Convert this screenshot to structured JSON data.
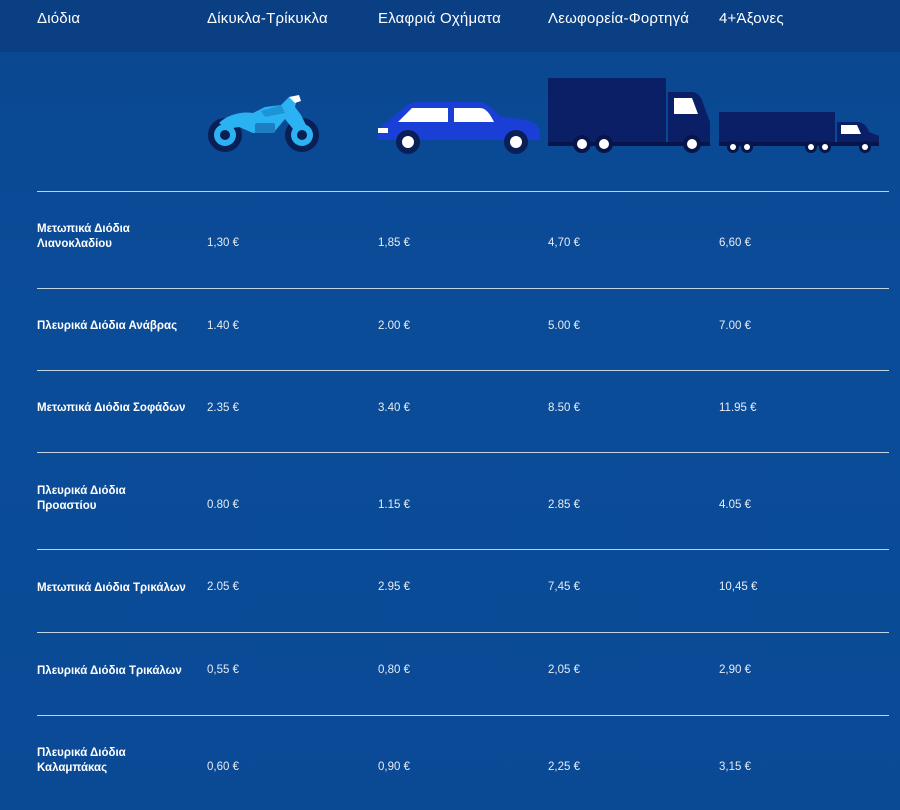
{
  "header": {
    "columns": [
      "Διόδια",
      "Δίκυκλα-Τρίκυκλα",
      "Ελαφριά Οχήματα",
      "Λεωφορεία-Φορτηγά",
      "4+Άξονες"
    ]
  },
  "vehicles": [
    {
      "icon": "motorcycle-icon",
      "color": "#2ab2f2"
    },
    {
      "icon": "car-icon",
      "color": "#1a3fd6"
    },
    {
      "icon": "truck-icon",
      "color": "#0a1f66"
    },
    {
      "icon": "semi-truck-icon",
      "color": "#0a1f66"
    }
  ],
  "rows": [
    {
      "name_line1": "Μετωπικά Διόδια",
      "name_line2": "Λιανοκλαδίου",
      "prices": [
        "1,30 €",
        "1,85 €",
        "4,70 €",
        "6,60 €"
      ]
    },
    {
      "name_line1": "Πλευρικά Διόδια Ανάβρας",
      "name_line2": "",
      "prices": [
        "1.40 €",
        "2.00 €",
        "5.00 €",
        "7.00 €"
      ]
    },
    {
      "name_line1": "Μετωπικά Διόδια Σοφάδων",
      "name_line2": "",
      "prices": [
        "2.35 €",
        "3.40 €",
        "8.50 €",
        "11.95 €"
      ]
    },
    {
      "name_line1": "Πλευρικά Διόδια",
      "name_line2": "Προαστίου",
      "prices": [
        "0.80 €",
        "1.15 €",
        "2.85 €",
        "4.05 €"
      ]
    },
    {
      "name_line1": "Μετωπικά Διόδια Τρικάλων",
      "name_line2": "",
      "prices": [
        "2.05 €",
        "2.95 €",
        "7,45 €",
        "10,45 €"
      ]
    },
    {
      "name_line1": "Πλευρικά Διόδια Τρικάλων",
      "name_line2": "",
      "prices": [
        "0,55 €",
        "0,80 €",
        "2,05 €",
        "2,90 €"
      ]
    },
    {
      "name_line1": "Πλευρικά Διόδια",
      "name_line2": "Καλαμπάκας",
      "prices": [
        "0,60 €",
        "0,90 €",
        "2,25 €",
        "3,15 €"
      ]
    }
  ]
}
